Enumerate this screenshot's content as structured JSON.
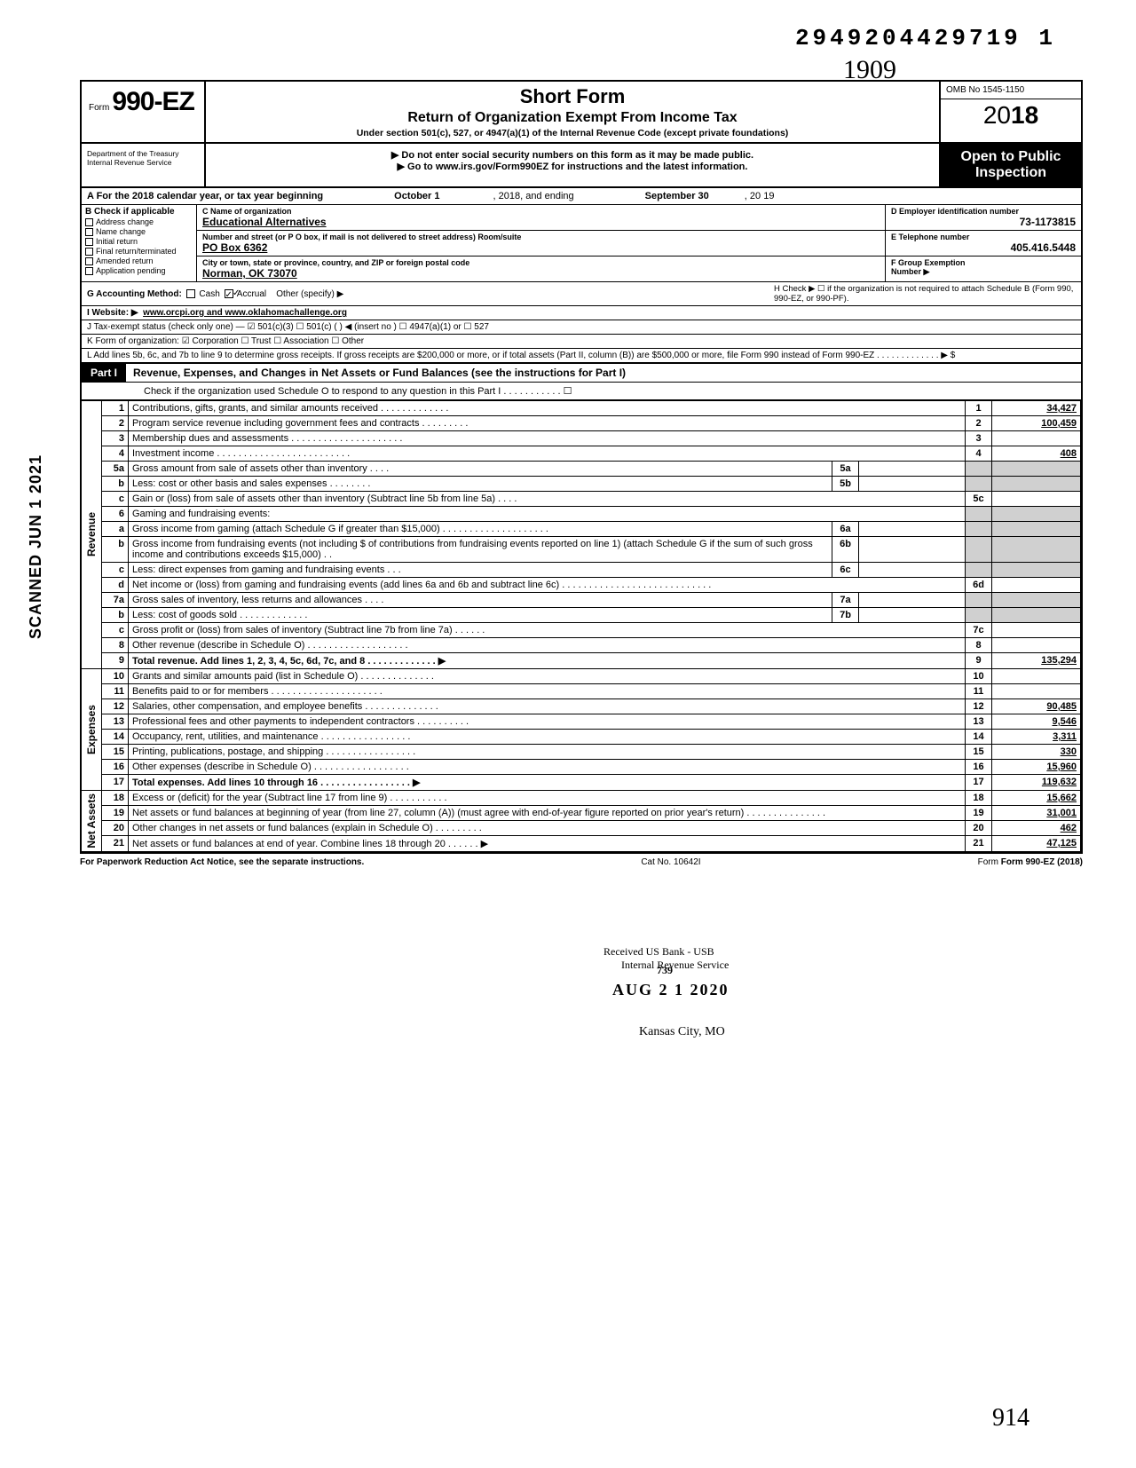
{
  "header": {
    "doc_locator": "2949204429719  1",
    "handwritten_top": "1909",
    "form_prefix": "Form",
    "form_no": "990-EZ",
    "title1": "Short Form",
    "title2": "Return of Organization Exempt From Income Tax",
    "subtitle": "Under section 501(c), 527, or 4947(a)(1) of the Internal Revenue Code (except private foundations)",
    "warn1": "▶ Do not enter social security numbers on this form as it may be made public.",
    "warn2": "▶ Go to www.irs.gov/Form990EZ for instructions and the latest information.",
    "omb": "OMB No  1545-1150",
    "year_prefix": "20",
    "year_bold": "18",
    "dept": "Department of the Treasury\nInternal Revenue Service",
    "open1": "Open to Public",
    "open2": "Inspection"
  },
  "lineA": {
    "text": "A For the 2018 calendar year, or tax year beginning",
    "begin": "October 1",
    "mid": ", 2018, and ending",
    "end": "September 30",
    "yr": ", 20   19"
  },
  "colB": {
    "hdr": "B  Check if applicable",
    "items": [
      "Address change",
      "Name change",
      "Initial return",
      "Final return/terminated",
      "Amended return",
      "Application pending"
    ]
  },
  "colC": {
    "c_lbl": "C  Name of organization",
    "c_val": "Educational Alternatives",
    "addr_lbl": "Number and street (or P O  box, if mail is not delivered to street address)          Room/suite",
    "addr_val": "PO Box 6362",
    "city_lbl": "City or town, state or province, country, and ZIP or foreign postal code",
    "city_val": "Norman, OK 73070"
  },
  "colDE": {
    "d_lbl": "D Employer identification number",
    "d_val": "73-1173815",
    "e_lbl": "E Telephone number",
    "e_val": "405.416.5448",
    "f_lbl": "F Group Exemption",
    "f_lbl2": "Number ▶"
  },
  "lineG": {
    "pre": "G Accounting Method:",
    "cash": "Cash",
    "accrual": "Accrual",
    "other": "Other (specify) ▶"
  },
  "lineH": "H  Check ▶ ☐ if the organization is not required to attach Schedule B (Form 990, 990-EZ, or 990-PF).",
  "lineI": {
    "pre": "I  Website: ▶",
    "val": "www.orcpi.org and www.oklahomachallenge.org"
  },
  "lineJ": "J Tax-exempt status (check only one) — ☑ 501(c)(3)   ☐ 501(c) (      ) ◀ (insert no ) ☐ 4947(a)(1) or   ☐ 527",
  "lineK": "K Form of organization:   ☑ Corporation     ☐ Trust            ☐ Association      ☐ Other",
  "lineL": "L  Add lines 5b, 6c, and 7b to line 9 to determine gross receipts. If gross receipts are $200,000 or more, or if total assets (Part II, column (B)) are $500,000 or more, file Form 990 instead of Form 990-EZ . . . . . . . . . . . . . ▶  $",
  "part1": {
    "tag": "Part I",
    "title": "Revenue, Expenses, and Changes in Net Assets or Fund Balances (see the instructions for Part I)",
    "check_line": "Check if the organization used Schedule O to respond to any question in this Part I . . . . . . . . . . . ☐"
  },
  "sections": {
    "revenue": "Revenue",
    "expenses": "Expenses",
    "netassets": "Net Assets"
  },
  "lines": [
    {
      "sec": "rev",
      "n": "1",
      "desc": "Contributions, gifts, grants, and similar amounts received . . . . . . . . . . . . .",
      "rn": "1",
      "rv": "34,427"
    },
    {
      "sec": "rev",
      "n": "2",
      "desc": "Program service revenue including government fees and contracts  . . . . . . . . .",
      "rn": "2",
      "rv": "100,459"
    },
    {
      "sec": "rev",
      "n": "3",
      "desc": "Membership dues and assessments . . . . . . . . . . . . . . . . . . . . .",
      "rn": "3",
      "rv": ""
    },
    {
      "sec": "rev",
      "n": "4",
      "desc": "Investment income    . . . . . . . . . . . . . . . . . . . . . . . . .",
      "rn": "4",
      "rv": "408"
    },
    {
      "sec": "rev",
      "n": "5a",
      "desc": "Gross amount from sale of assets other than inventory  . . . .",
      "mn": "5a",
      "mv": "",
      "shaded": true
    },
    {
      "sec": "rev",
      "n": "b",
      "desc": "Less: cost or other basis and sales expenses . . . . . . . .",
      "mn": "5b",
      "mv": "",
      "shaded": true
    },
    {
      "sec": "rev",
      "n": "c",
      "desc": "Gain or (loss) from sale of assets other than inventory (Subtract line 5b from line 5a) . . . .",
      "rn": "5c",
      "rv": ""
    },
    {
      "sec": "rev",
      "n": "6",
      "desc": "Gaming and fundraising events:",
      "shaded": true,
      "noright": true
    },
    {
      "sec": "rev",
      "n": "a",
      "desc": "Gross income from gaming (attach Schedule G if greater than $15,000) . . . . . . . . . . . . . . . . . . . .",
      "mn": "6a",
      "mv": "",
      "shaded": true
    },
    {
      "sec": "rev",
      "n": "b",
      "desc": "Gross income from fundraising events (not including  $               of contributions from fundraising events reported on line 1) (attach Schedule G if the sum of such gross income and contributions exceeds $15,000) . .",
      "mn": "6b",
      "mv": "",
      "shaded": true
    },
    {
      "sec": "rev",
      "n": "c",
      "desc": "Less: direct expenses from gaming and fundraising events  . . .",
      "mn": "6c",
      "mv": "",
      "shaded": true
    },
    {
      "sec": "rev",
      "n": "d",
      "desc": "Net income or (loss) from gaming and fundraising events (add lines 6a and 6b and subtract line 6c)   . . . . . . . . . . . . . . . . . . . . . . . . . . . .",
      "rn": "6d",
      "rv": ""
    },
    {
      "sec": "rev",
      "n": "7a",
      "desc": "Gross sales of inventory, less returns and allowances  . . . .",
      "mn": "7a",
      "mv": "",
      "shaded": true
    },
    {
      "sec": "rev",
      "n": "b",
      "desc": "Less: cost of goods sold    . . . . . . . . . . . . .",
      "mn": "7b",
      "mv": "",
      "shaded": true
    },
    {
      "sec": "rev",
      "n": "c",
      "desc": "Gross profit or (loss) from sales of inventory (Subtract line 7b from line 7a)  . . . . . .",
      "rn": "7c",
      "rv": ""
    },
    {
      "sec": "rev",
      "n": "8",
      "desc": "Other revenue (describe in Schedule O) . . . . . . . . . . . . . . . . . . .",
      "rn": "8",
      "rv": ""
    },
    {
      "sec": "rev",
      "n": "9",
      "desc": "Total revenue. Add lines 1, 2, 3, 4, 5c, 6d, 7c, and 8  . . . . . . . . . . . . . ▶",
      "rn": "9",
      "rv": "135,294",
      "bold": true
    },
    {
      "sec": "exp",
      "n": "10",
      "desc": "Grants and similar amounts paid (list in Schedule O)  . . . . . . . . . . . . . .",
      "rn": "10",
      "rv": ""
    },
    {
      "sec": "exp",
      "n": "11",
      "desc": "Benefits paid to or for members  . . . . . . . . . . . . . . . . . . . . .",
      "rn": "11",
      "rv": ""
    },
    {
      "sec": "exp",
      "n": "12",
      "desc": "Salaries, other compensation, and employee benefits . . . . . . . . . . . . . .",
      "rn": "12",
      "rv": "90,485"
    },
    {
      "sec": "exp",
      "n": "13",
      "desc": "Professional fees and other payments to independent contractors . . . . . . . . . .",
      "rn": "13",
      "rv": "9,546"
    },
    {
      "sec": "exp",
      "n": "14",
      "desc": "Occupancy, rent, utilities, and maintenance   . . . . . . . . . . . . . . . . .",
      "rn": "14",
      "rv": "3,311"
    },
    {
      "sec": "exp",
      "n": "15",
      "desc": "Printing, publications, postage, and shipping . . . . . . . . . . . . . . . . .",
      "rn": "15",
      "rv": "330"
    },
    {
      "sec": "exp",
      "n": "16",
      "desc": "Other expenses (describe in Schedule O)  . . . . . . . . . . . . . . . . . .",
      "rn": "16",
      "rv": "15,960"
    },
    {
      "sec": "exp",
      "n": "17",
      "desc": "Total expenses. Add lines 10 through 16  . . . . . . . . . . . . . . . . . ▶",
      "rn": "17",
      "rv": "119,632",
      "bold": true
    },
    {
      "sec": "net",
      "n": "18",
      "desc": "Excess or (deficit) for the year (Subtract line 17 from line 9)  . . . . . . . . . . .",
      "rn": "18",
      "rv": "15,662"
    },
    {
      "sec": "net",
      "n": "19",
      "desc": "Net assets or fund balances at beginning of year (from line 27, column (A)) (must agree with end-of-year figure reported on prior year's return)   . . . . . . . . . . . . . . .",
      "rn": "19",
      "rv": "31,001"
    },
    {
      "sec": "net",
      "n": "20",
      "desc": "Other changes in net assets or fund balances (explain in Schedule O) . . . . . . . . .",
      "rn": "20",
      "rv": "462"
    },
    {
      "sec": "net",
      "n": "21",
      "desc": "Net assets or fund balances at end of year. Combine lines 18 through 20  . . . . . . ▶",
      "rn": "21",
      "rv": "47,125"
    }
  ],
  "stamps": {
    "s1": "Internal Revenue Service",
    "s2": "Received US Bank - USB",
    "s3": "739",
    "s4": "AUG 2 1 2020",
    "s5": "Kansas City, MO"
  },
  "scanned": "SCANNED JUN 1 2021",
  "footer": {
    "left": "For Paperwork Reduction Act Notice, see the separate instructions.",
    "mid": "Cat  No. 10642I",
    "right": "Form 990-EZ  (2018)"
  },
  "sig": "914"
}
